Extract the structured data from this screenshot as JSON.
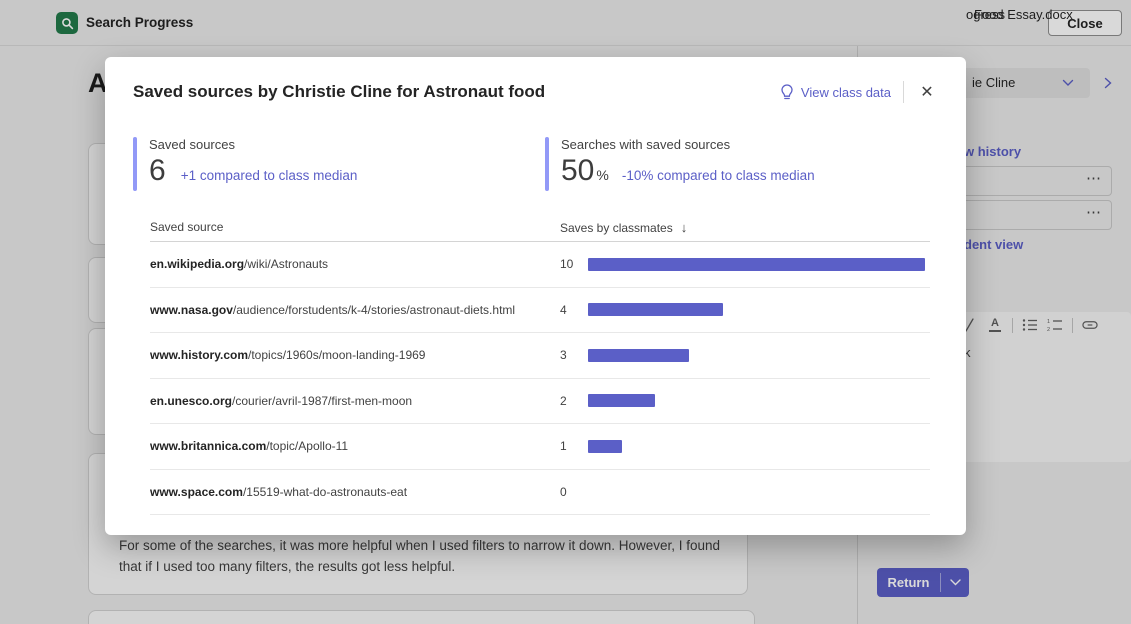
{
  "topbar": {
    "app_name": "Search Progress",
    "close_label": "Close"
  },
  "modal": {
    "title": "Saved sources by Christie Cline for Astronaut food",
    "view_class_data_label": "View class data",
    "close_icon": "✕",
    "stats": [
      {
        "label": "Saved sources",
        "value": "6",
        "unit": "",
        "comparison": "+1 compared to class median"
      },
      {
        "label": "Searches with saved sources",
        "value": "50",
        "unit": "%",
        "comparison": "-10% compared to class median"
      }
    ],
    "table": {
      "col_source": "Saved source",
      "col_saves": "Saves by classmates",
      "sort_icon": "↓",
      "rows": [
        {
          "domain": "en.wikipedia.org",
          "path": "/wiki/Astronauts",
          "saves": 10
        },
        {
          "domain": "www.nasa.gov",
          "path": "/audience/forstudents/k-4/stories/astronaut-diets.html",
          "saves": 4
        },
        {
          "domain": "www.history.com",
          "path": "/topics/1960s/moon-landing-1969",
          "saves": 3
        },
        {
          "domain": "en.unesco.org",
          "path": "/courier/avril-1987/first-men-moon",
          "saves": 2
        },
        {
          "domain": "www.britannica.com",
          "path": "/topic/Apollo-11",
          "saves": 1
        },
        {
          "domain": "www.space.com",
          "path": "/15519-what-do-astronauts-eat",
          "saves": 0
        }
      ]
    }
  },
  "background": {
    "heading_fragment": "A",
    "feedback_text": "For some of the searches, it was more helpful when I used filters to narrow it down. However, I found that if I used too many filters, the results got less helpful.",
    "panel": {
      "student_selector_fragment": "ie Cline",
      "history_link_fragment": "w history",
      "file_item_fragments": [
        "ogress",
        "Food Essay.docx"
      ],
      "student_view_link_fragment": "dent view",
      "ellipsis_icon": "⋯",
      "editor_text_fragment": "k",
      "return_label": "Return"
    }
  },
  "colors": {
    "accent": "#5b5fc7",
    "stat_bar": "#9299f7",
    "bar": "#5b5fc7",
    "app_icon_green": "#237b4b"
  },
  "chart_data": {
    "type": "bar",
    "orientation": "horizontal",
    "title": "Saves by classmates",
    "categories": [
      "en.wikipedia.org/wiki/Astronauts",
      "www.nasa.gov/audience/forstudents/k-4/stories/astronaut-diets.html",
      "www.history.com/topics/1960s/moon-landing-1969",
      "en.unesco.org/courier/avril-1987/first-men-moon",
      "www.britannica.com/topic/Apollo-11",
      "www.space.com/15519-what-do-astronauts-eat"
    ],
    "values": [
      10,
      4,
      3,
      2,
      1,
      0
    ],
    "xlim": [
      0,
      10
    ],
    "bar_color": "#5b5fc7",
    "grid": false,
    "legend": false
  }
}
